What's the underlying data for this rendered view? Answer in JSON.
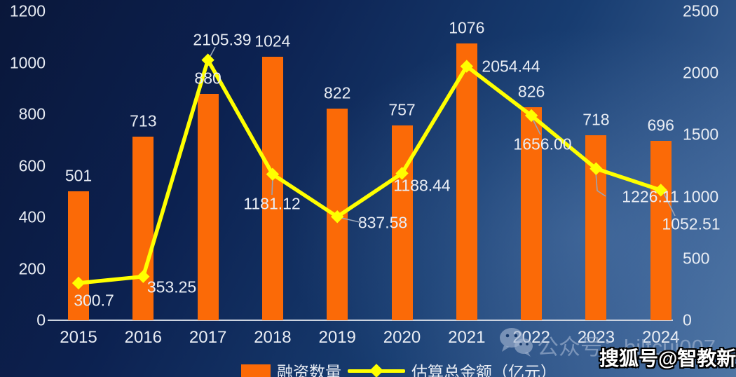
{
  "colors": {
    "bar": "#fb6a07",
    "line": "#ffff00",
    "text": "#e9edf4",
    "axis": "#ccd3df",
    "leader": "#98a4b8",
    "watermark": "#a4b6d2",
    "background_top_left": "#0a173a",
    "background_bottom_right": "#4d74a2"
  },
  "chart_data": {
    "type": "bar+line combo, dual axis",
    "categories": [
      "2015",
      "2016",
      "2017",
      "2018",
      "2019",
      "2020",
      "2021",
      "2022",
      "2023",
      "2024"
    ],
    "series": [
      {
        "name": "融资数量",
        "type": "bar",
        "axis": "left",
        "color": "#fb6a07",
        "values": [
          501,
          713,
          880,
          1024,
          822,
          757,
          1076,
          826,
          718,
          696
        ],
        "labels": [
          "501",
          "713",
          "880",
          "1024",
          "822",
          "757",
          "1076",
          "826",
          "718",
          "696"
        ]
      },
      {
        "name": "估算总金额（亿元）",
        "type": "line",
        "axis": "right",
        "color": "#ffff00",
        "marker": "diamond",
        "values": [
          300.7,
          353.25,
          2105.39,
          1181.12,
          837.58,
          1188.44,
          2054.44,
          1656.0,
          1226.11,
          1052.51
        ],
        "labels": [
          "300.7",
          "353.25",
          "2105.39",
          "1181.12",
          "837.58",
          "1188.44",
          "2054.44",
          "1656.00",
          "1226.11",
          "1052.51"
        ]
      }
    ],
    "left_axis": {
      "min": 0,
      "max": 1200,
      "ticks": [
        "1200",
        "1000",
        "800",
        "600",
        "400",
        "200",
        "0"
      ]
    },
    "right_axis": {
      "min": 0,
      "max": 2500,
      "ticks": [
        "2500",
        "2000",
        "1500",
        "1000",
        "500",
        "0"
      ]
    },
    "grid": "off",
    "legend_position": "bottom-center",
    "legend": [
      {
        "label": "融资数量",
        "swatch": "bar"
      },
      {
        "label": "估算总金额（亿元）",
        "swatch": "line"
      }
    ]
  },
  "watermarks": {
    "wechat": {
      "icon": "wechat-icon",
      "text": "公众号：biltcui007"
    },
    "sohu": {
      "text": "搜狐号@智教新媒"
    }
  }
}
